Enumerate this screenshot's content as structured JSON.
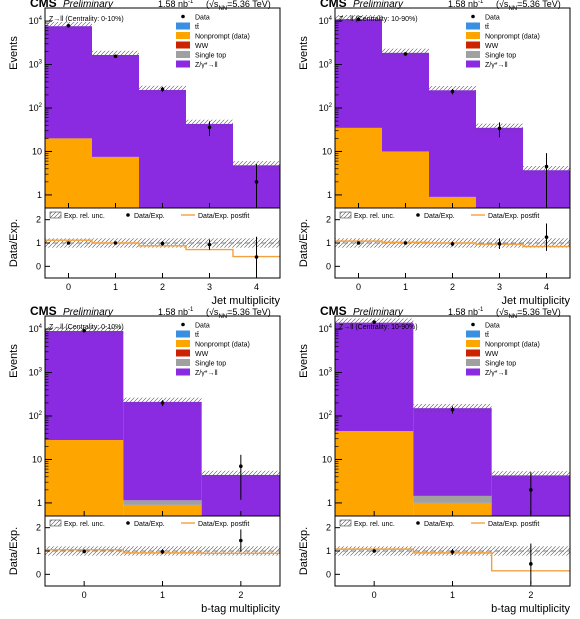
{
  "header": {
    "cms": "CMS",
    "preliminary": "Preliminary",
    "lumi": "1.58 nb",
    "lumi_exp": "-1",
    "sqrt_open": "(√s",
    "sqrt_sub": "NN",
    "energy": "=5.36 TeV)"
  },
  "legend_labels": {
    "data": "Data",
    "ttbar": "tt̄",
    "nonprompt": "Nonprompt (data)",
    "ww": "WW",
    "singletop": "Single top",
    "dy": "Z/γ*→ll"
  },
  "ratio_legend": {
    "unc": "Exp. rel. unc.",
    "ratio": "Data/Exp.",
    "postfit": "Data/Exp. postfit"
  },
  "y_label_top": "Events",
  "y_label_ratio": "Data/Exp.",
  "colors": {
    "dy": "#8a2be2",
    "nonprompt": "#ffa500",
    "singletop": "#a0a0a0",
    "ww": "#cc2200",
    "ttbar": "#3a8fe0",
    "postfit": "#f4a040"
  },
  "chart_data": [
    {
      "type": "bar",
      "stacked": true,
      "log_y": true,
      "channel": "Z→ll (Centrality: 0-10%)",
      "xlabel": "Jet multiplicity",
      "categories": [
        "0",
        "1",
        "2",
        "3",
        "4"
      ],
      "ylim": [
        0.5,
        20000
      ],
      "series": [
        {
          "name": "Nonprompt (data)",
          "values": [
            20,
            7.5,
            0,
            0,
            0
          ]
        },
        {
          "name": "WW",
          "values": [
            0,
            0,
            0,
            0,
            0
          ]
        },
        {
          "name": "Single top",
          "values": [
            0,
            0,
            0,
            0,
            0
          ]
        },
        {
          "name": "Z/γ*→ll",
          "values": [
            7600,
            1650,
            260,
            43,
            4.8
          ]
        }
      ],
      "data": [
        7800,
        1550,
        270,
        36,
        2
      ],
      "ratio": [
        1.0,
        1.0,
        0.98,
        0.93,
        0.4
      ],
      "ratio_ylim": [
        -0.5,
        2.5
      ],
      "postfit": [
        1.12,
        1.0,
        0.88,
        0.72,
        0.42
      ]
    },
    {
      "type": "bar",
      "stacked": true,
      "log_y": true,
      "channel": "Z→ll (Centrality: 10-90%)",
      "xlabel": "Jet multiplicity",
      "categories": [
        "0",
        "1",
        "2",
        "3",
        "4"
      ],
      "ylim": [
        0.5,
        20000
      ],
      "series": [
        {
          "name": "Nonprompt (data)",
          "values": [
            35,
            10,
            0.9,
            0,
            0
          ]
        },
        {
          "name": "WW",
          "values": [
            1.5,
            0,
            0,
            0,
            0
          ]
        },
        {
          "name": "Single top",
          "values": [
            0,
            0,
            0,
            0,
            0
          ]
        },
        {
          "name": "Z/γ*→ll",
          "values": [
            11000,
            1850,
            255,
            35,
            3.7
          ]
        }
      ],
      "data": [
        11000,
        1750,
        240,
        34,
        4.5
      ],
      "ratio": [
        1.0,
        1.0,
        0.96,
        0.97,
        1.25
      ],
      "ratio_ylim": [
        -0.5,
        2.5
      ],
      "postfit": [
        1.08,
        1.03,
        1.0,
        0.95,
        0.85
      ]
    },
    {
      "type": "bar",
      "stacked": true,
      "log_y": true,
      "channel": "Z→ll (Centrality: 0-10%)",
      "xlabel": "b-tag multiplicity",
      "categories": [
        "0",
        "1",
        "2"
      ],
      "ylim": [
        0.5,
        20000
      ],
      "series": [
        {
          "name": "Nonprompt (data)",
          "values": [
            28,
            0.9,
            0
          ]
        },
        {
          "name": "WW",
          "values": [
            0,
            0,
            0
          ]
        },
        {
          "name": "Single top",
          "values": [
            0,
            0.25,
            0
          ]
        },
        {
          "name": "Z/γ*→ll",
          "values": [
            9000,
            210,
            4.4
          ]
        }
      ],
      "data": [
        9200,
        200,
        7
      ],
      "ratio": [
        0.98,
        0.97,
        1.45
      ],
      "ratio_ylim": [
        -0.5,
        2.5
      ],
      "postfit": [
        1.05,
        0.92,
        0.9
      ]
    },
    {
      "type": "bar",
      "stacked": true,
      "log_y": true,
      "channel": "Z→ll (Centrality: 10-90%)",
      "xlabel": "b-tag multiplicity",
      "categories": [
        "0",
        "1",
        "2"
      ],
      "ylim": [
        0.5,
        20000
      ],
      "series": [
        {
          "name": "Nonprompt (data)",
          "values": [
            45,
            1.0,
            0
          ]
        },
        {
          "name": "WW",
          "values": [
            0,
            0,
            0
          ]
        },
        {
          "name": "Single top",
          "values": [
            0,
            0.45,
            0
          ]
        },
        {
          "name": "Z/γ*→ll",
          "values": [
            14000,
            150,
            4.3
          ]
        }
      ],
      "data": [
        14500,
        140,
        2
      ],
      "ratio": [
        1.0,
        0.96,
        0.45
      ],
      "ratio_ylim": [
        -0.5,
        2.5
      ],
      "postfit": [
        1.08,
        0.92,
        0.15
      ]
    }
  ]
}
